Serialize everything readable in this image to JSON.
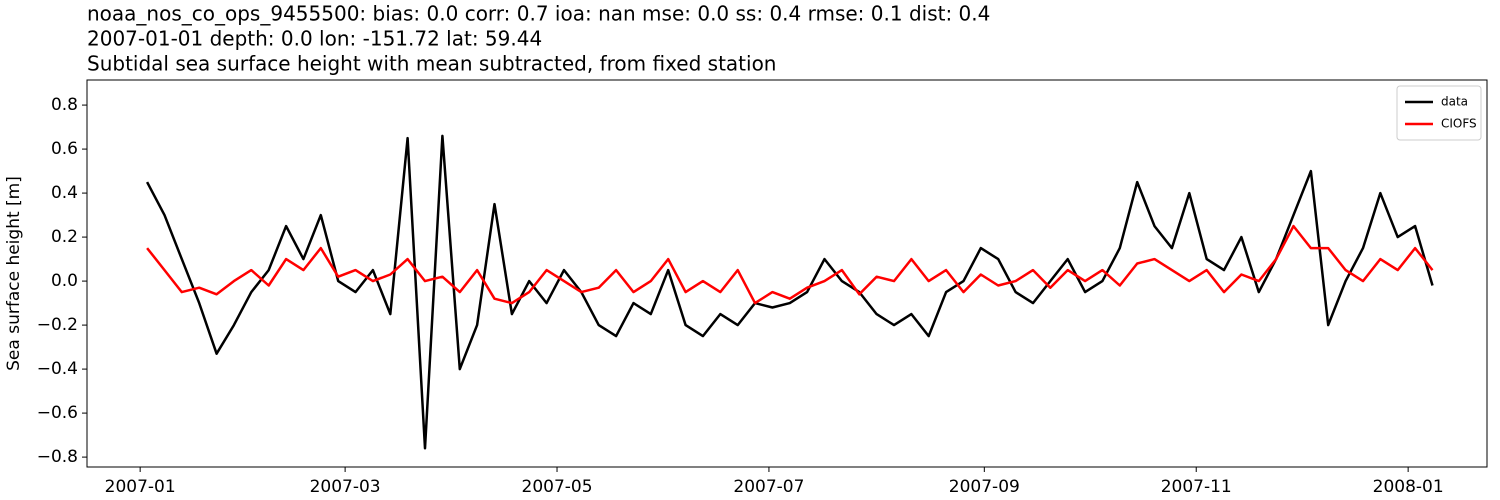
{
  "chart_data": {
    "type": "line",
    "title_lines": [
      "noaa_nos_co_ops_9455500: bias: 0.0  corr: 0.7  ioa: nan  mse: 0.0  ss: 0.4  rmse: 0.1  dist: 0.4",
      "2007-01-01 depth: 0.0 lon: -151.72 lat: 59.44",
      "Subtidal sea surface height with mean subtracted, from fixed station"
    ],
    "y_label": "Sea surface height [m]",
    "x": [
      2,
      7,
      12,
      17,
      22,
      27,
      32,
      37,
      42,
      47,
      52,
      57,
      62,
      67,
      72,
      77,
      82,
      87,
      92,
      97,
      102,
      107,
      112,
      117,
      122,
      127,
      132,
      137,
      142,
      147,
      152,
      157,
      162,
      167,
      172,
      177,
      182,
      187,
      192,
      197,
      202,
      207,
      212,
      217,
      222,
      227,
      232,
      237,
      242,
      247,
      252,
      257,
      262,
      267,
      272,
      277,
      282,
      287,
      292,
      297,
      302,
      307,
      312,
      317,
      322,
      327,
      332,
      337,
      342,
      347,
      352,
      357,
      362,
      367,
      372
    ],
    "series": [
      {
        "name": "data",
        "color": "#000000",
        "values": [
          0.45,
          0.3,
          0.1,
          -0.1,
          -0.33,
          -0.2,
          -0.05,
          0.05,
          0.25,
          0.1,
          0.3,
          0.0,
          -0.05,
          0.05,
          -0.15,
          0.65,
          -0.76,
          0.66,
          -0.4,
          -0.2,
          0.35,
          -0.15,
          0.0,
          -0.1,
          0.05,
          -0.05,
          -0.2,
          -0.25,
          -0.1,
          -0.15,
          0.05,
          -0.2,
          -0.25,
          -0.15,
          -0.2,
          -0.1,
          -0.12,
          -0.1,
          -0.05,
          0.1,
          0.0,
          -0.05,
          -0.15,
          -0.2,
          -0.15,
          -0.25,
          -0.05,
          0.0,
          0.15,
          0.1,
          -0.05,
          -0.1,
          0.0,
          0.1,
          -0.05,
          0.0,
          0.15,
          0.45,
          0.25,
          0.15,
          0.4,
          0.1,
          0.05,
          0.2,
          -0.05,
          0.1,
          0.3,
          0.5,
          -0.2,
          0.0,
          0.15,
          0.4,
          0.2,
          0.25,
          -0.02
        ]
      },
      {
        "name": "CIOFS",
        "color": "#ff0000",
        "values": [
          0.15,
          0.05,
          -0.05,
          -0.03,
          -0.06,
          0.0,
          0.05,
          -0.02,
          0.1,
          0.05,
          0.15,
          0.02,
          0.05,
          0.0,
          0.03,
          0.1,
          0.0,
          0.02,
          -0.05,
          0.05,
          -0.08,
          -0.1,
          -0.05,
          0.05,
          0.0,
          -0.05,
          -0.03,
          0.05,
          -0.05,
          0.0,
          0.1,
          -0.05,
          0.0,
          -0.05,
          0.05,
          -0.1,
          -0.05,
          -0.08,
          -0.03,
          0.0,
          0.05,
          -0.06,
          0.02,
          0.0,
          0.1,
          0.0,
          0.05,
          -0.05,
          0.03,
          -0.02,
          0.0,
          0.05,
          -0.03,
          0.05,
          0.0,
          0.05,
          -0.02,
          0.08,
          0.1,
          0.05,
          0.0,
          0.05,
          -0.05,
          0.03,
          0.0,
          0.1,
          0.25,
          0.15,
          0.15,
          0.05,
          0.0,
          0.1,
          0.05,
          0.15,
          0.05
        ]
      }
    ],
    "xlim": [
      -15.3,
      387.7
    ],
    "xticks": [
      {
        "value": 0,
        "label": "2007-01"
      },
      {
        "value": 59,
        "label": "2007-03"
      },
      {
        "value": 120,
        "label": "2007-05"
      },
      {
        "value": 181,
        "label": "2007-07"
      },
      {
        "value": 243,
        "label": "2007-09"
      },
      {
        "value": 304,
        "label": "2007-11"
      },
      {
        "value": 365,
        "label": "2008-01"
      }
    ],
    "ylim": [
      -0.845,
      0.914
    ],
    "yticks": [
      -0.8,
      -0.6,
      -0.4,
      -0.2,
      0.0,
      0.2,
      0.4,
      0.6,
      0.8
    ],
    "legend": "upper right",
    "grid": false
  }
}
